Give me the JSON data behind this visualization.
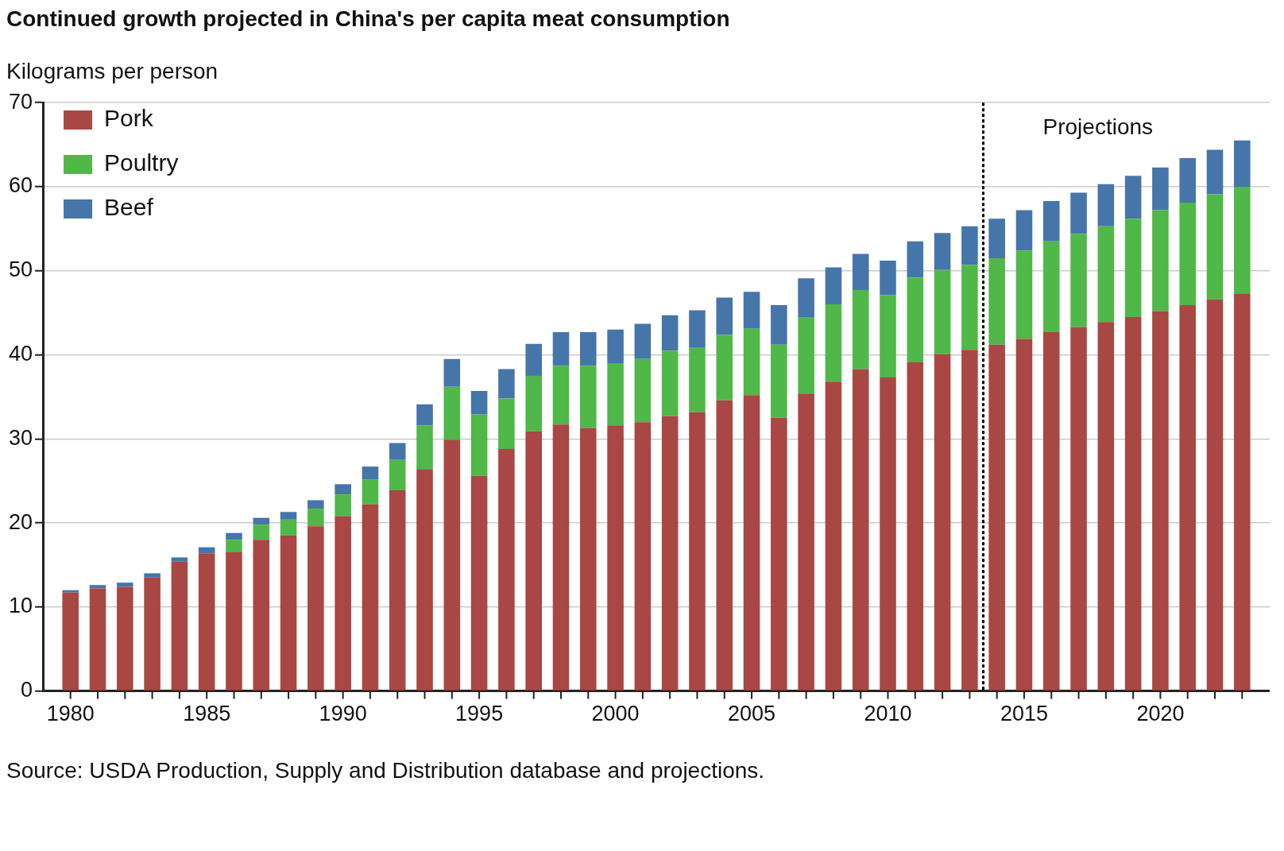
{
  "chart_data": {
    "type": "bar",
    "title": "Continued growth projected in China's per capita meat consumption",
    "ylabel": "Kilograms per person",
    "annotations": [
      "Source: USDA Production, Supply and Distribution database and projections."
    ],
    "x": [
      1980,
      1981,
      1982,
      1983,
      1984,
      1985,
      1986,
      1987,
      1988,
      1989,
      1990,
      1991,
      1992,
      1993,
      1994,
      1995,
      1996,
      1997,
      1998,
      1999,
      2000,
      2001,
      2002,
      2003,
      2004,
      2005,
      2006,
      2007,
      2008,
      2009,
      2010,
      2011,
      2012,
      2013,
      2014,
      2015,
      2016,
      2017,
      2018,
      2019,
      2020,
      2021,
      2022,
      2023
    ],
    "xlim": [
      1979.5,
      2023.5
    ],
    "xticks": [
      1980,
      {
        "value": 1981,
        "label": null
      },
      {
        "value": 1982,
        "label": null
      },
      {
        "value": 1983,
        "label": null
      },
      {
        "value": 1984,
        "label": null
      },
      1985,
      {
        "value": 1986,
        "label": null
      },
      {
        "value": 1987,
        "label": null
      },
      {
        "value": 1988,
        "label": null
      },
      {
        "value": 1989,
        "label": null
      },
      1990,
      {
        "value": 1991,
        "label": null
      },
      {
        "value": 1992,
        "label": null
      },
      {
        "value": 1993,
        "label": null
      },
      {
        "value": 1994,
        "label": null
      },
      1995,
      {
        "value": 1996,
        "label": null
      },
      {
        "value": 1997,
        "label": null
      },
      {
        "value": 1998,
        "label": null
      },
      {
        "value": 1999,
        "label": null
      },
      2000,
      {
        "value": 2001,
        "label": null
      },
      {
        "value": 2002,
        "label": null
      },
      {
        "value": 2003,
        "label": null
      },
      {
        "value": 2004,
        "label": null
      },
      2005,
      {
        "value": 2006,
        "label": null
      },
      {
        "value": 2007,
        "label": null
      },
      {
        "value": 2008,
        "label": null
      },
      {
        "value": 2009,
        "label": null
      },
      2010,
      {
        "value": 2011,
        "label": null
      },
      {
        "value": 2012,
        "label": null
      },
      {
        "value": 2013,
        "label": null
      },
      {
        "value": 2014,
        "label": null
      },
      2015,
      {
        "value": 2016,
        "label": null
      },
      {
        "value": 2017,
        "label": null
      },
      {
        "value": 2018,
        "label": null
      },
      {
        "value": 2019,
        "label": null
      },
      2020,
      {
        "value": 2021,
        "label": null
      },
      {
        "value": 2022,
        "label": null
      },
      {
        "value": 2023,
        "label": null
      }
    ],
    "ylim": [
      0,
      70
    ],
    "yticks": [
      0,
      10,
      20,
      30,
      40,
      50,
      60,
      70
    ],
    "stacked": true,
    "grid": "y",
    "legend": "top left",
    "ref_lines": [
      {
        "axis": "x",
        "value": 2013.5,
        "label": "Projections",
        "color": "#000000",
        "line_style": "dotted"
      }
    ],
    "series": [
      {
        "name": "Pork",
        "color": "#a94744",
        "values": [
          11.7,
          12.2,
          12.4,
          13.5,
          15.4,
          16.4,
          16.5,
          18.0,
          18.5,
          19.6,
          20.8,
          22.2,
          23.9,
          26.4,
          29.9,
          25.6,
          28.8,
          30.9,
          31.7,
          31.3,
          31.6,
          32.0,
          32.7,
          33.2,
          34.6,
          35.2,
          32.5,
          35.4,
          36.8,
          38.3,
          37.3,
          39.1,
          40.1,
          40.6,
          41.2,
          41.9,
          42.7,
          43.3,
          43.9,
          44.5,
          45.2,
          45.9,
          46.6,
          47.3
        ]
      },
      {
        "name": "Poultry",
        "color": "#4fb848",
        "values": [
          0,
          0,
          0,
          0,
          0,
          0,
          1.5,
          1.8,
          1.9,
          2.1,
          2.6,
          3.0,
          3.6,
          5.2,
          6.3,
          7.3,
          6.0,
          6.6,
          7.0,
          7.4,
          7.4,
          7.5,
          7.8,
          7.7,
          7.8,
          7.9,
          8.7,
          9.1,
          9.2,
          9.4,
          9.8,
          10.1,
          10.0,
          10.1,
          10.3,
          10.5,
          10.8,
          11.1,
          11.4,
          11.7,
          12.0,
          12.2,
          12.5,
          12.7
        ]
      },
      {
        "name": "Beef",
        "color": "#4675aa",
        "values": [
          0.3,
          0.4,
          0.5,
          0.5,
          0.5,
          0.7,
          0.8,
          0.8,
          0.9,
          1.0,
          1.2,
          1.5,
          2.0,
          2.5,
          3.3,
          2.8,
          3.5,
          3.8,
          4.0,
          4.0,
          4.0,
          4.2,
          4.2,
          4.4,
          4.4,
          4.4,
          4.7,
          4.6,
          4.4,
          4.3,
          4.1,
          4.3,
          4.4,
          4.6,
          4.7,
          4.8,
          4.8,
          4.9,
          5.0,
          5.1,
          5.1,
          5.3,
          5.3,
          5.5
        ]
      }
    ]
  }
}
